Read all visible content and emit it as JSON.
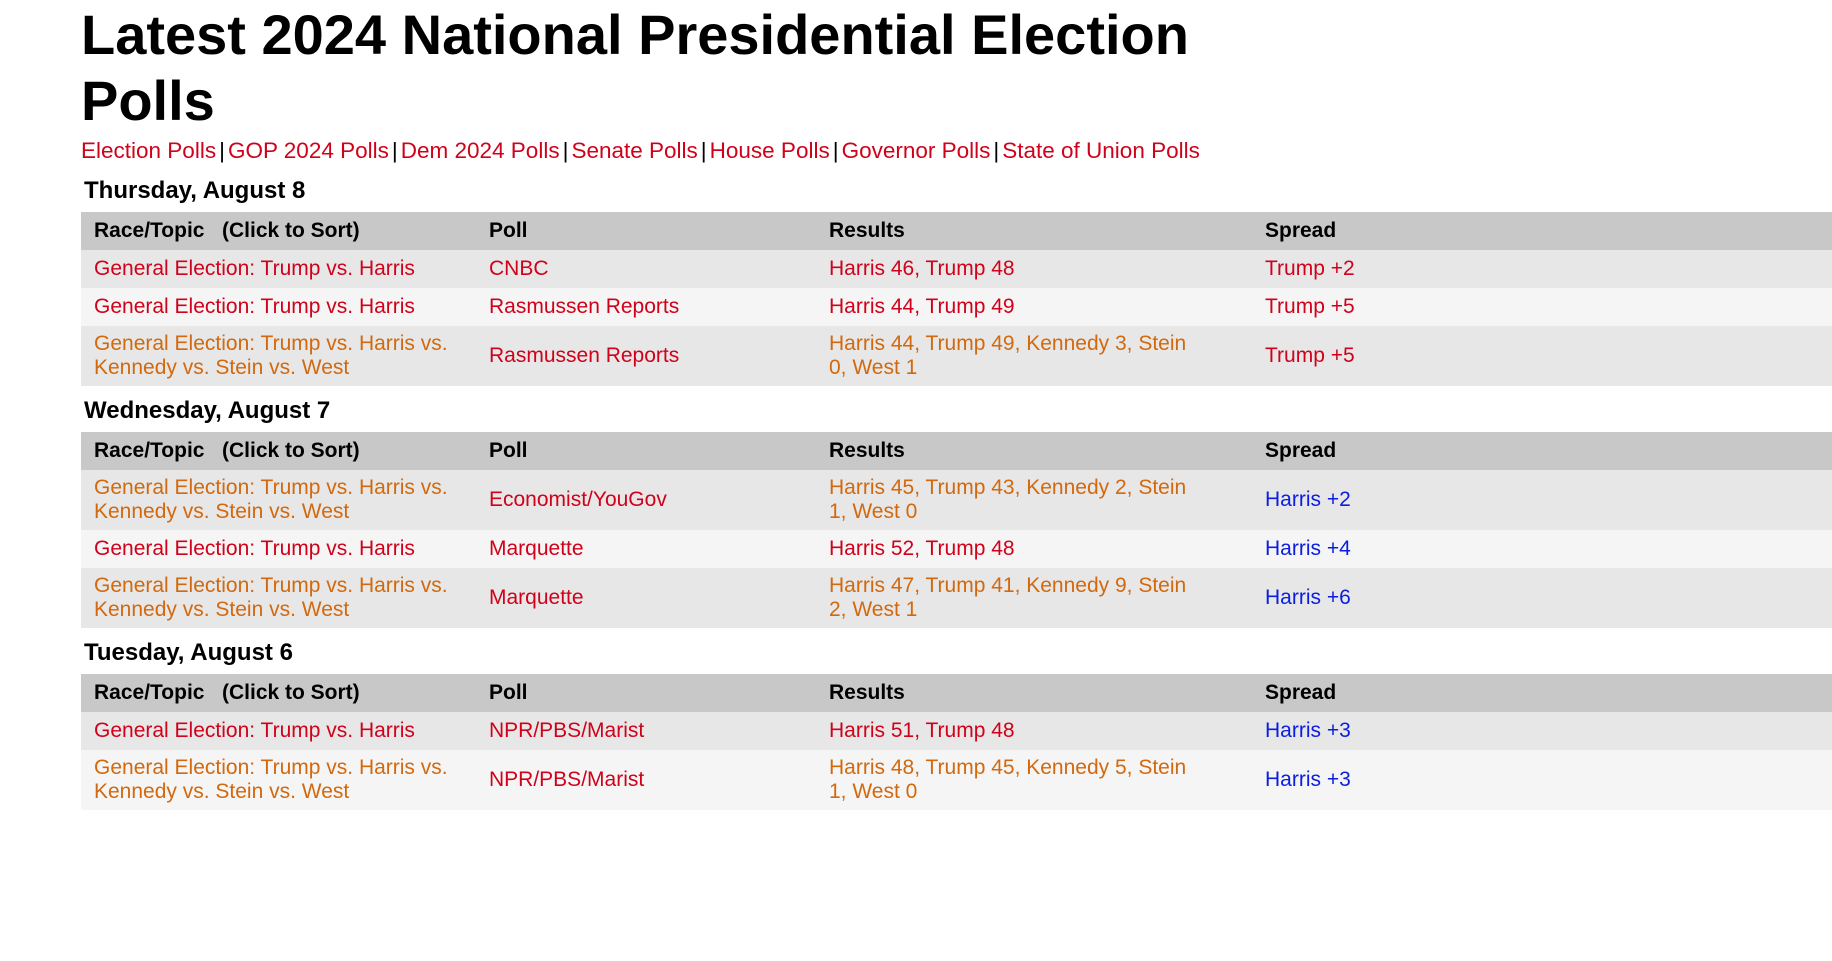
{
  "title": "Latest 2024 National Presidential Election Polls",
  "nav": [
    "Election Polls",
    "GOP 2024 Polls",
    "Dem 2024 Polls",
    "Senate Polls",
    "House Polls",
    "Governor Polls",
    "State of Union Polls"
  ],
  "nav_separator": "|",
  "columns": {
    "race": "Race/Topic",
    "sort_hint": "(Click to Sort)",
    "poll": "Poll",
    "results": "Results",
    "spread": "Spread"
  },
  "colors": {
    "link_red": "#d0021b",
    "race_orange": "#d2690e",
    "harris_blue": "#0b1ee0",
    "header_gray": "#c8c8c8"
  },
  "days": [
    {
      "date": "Thursday, August 8",
      "rows": [
        {
          "race": "General Election: Trump vs. Harris",
          "race_color": "red",
          "poll": "CNBC",
          "results": "Harris 46, Trump 48",
          "spread": "Trump +2",
          "spread_party": "trump"
        },
        {
          "race": "General Election: Trump vs. Harris",
          "race_color": "red",
          "poll": "Rasmussen Reports",
          "results": "Harris 44, Trump 49",
          "spread": "Trump +5",
          "spread_party": "trump"
        },
        {
          "race": "General Election: Trump vs. Harris vs. Kennedy vs. Stein vs. West",
          "race_color": "orange",
          "poll": "Rasmussen Reports",
          "results": "Harris 44, Trump 49, Kennedy 3, Stein 0, West 1",
          "spread": "Trump +5",
          "spread_party": "trump"
        }
      ]
    },
    {
      "date": "Wednesday, August 7",
      "rows": [
        {
          "race": "General Election: Trump vs. Harris vs. Kennedy vs. Stein vs. West",
          "race_color": "orange",
          "poll": "Economist/YouGov",
          "results": "Harris 45, Trump 43, Kennedy 2, Stein 1, West 0",
          "spread": "Harris +2",
          "spread_party": "harris"
        },
        {
          "race": "General Election: Trump vs. Harris",
          "race_color": "red",
          "poll": "Marquette",
          "results": "Harris 52, Trump 48",
          "spread": "Harris +4",
          "spread_party": "harris"
        },
        {
          "race": "General Election: Trump vs. Harris vs. Kennedy vs. Stein vs. West",
          "race_color": "orange",
          "poll": "Marquette",
          "results": "Harris 47, Trump 41, Kennedy 9, Stein 2, West 1",
          "spread": "Harris +6",
          "spread_party": "harris"
        }
      ]
    },
    {
      "date": "Tuesday, August 6",
      "rows": [
        {
          "race": "General Election: Trump vs. Harris",
          "race_color": "red",
          "poll": "NPR/PBS/Marist",
          "results": "Harris 51, Trump 48",
          "spread": "Harris +3",
          "spread_party": "harris"
        },
        {
          "race": "General Election: Trump vs. Harris vs. Kennedy vs. Stein vs. West",
          "race_color": "orange",
          "poll": "NPR/PBS/Marist",
          "results": "Harris 48, Trump 45, Kennedy 5, Stein 1, West 0",
          "spread": "Harris +3",
          "spread_party": "harris"
        }
      ]
    }
  ]
}
